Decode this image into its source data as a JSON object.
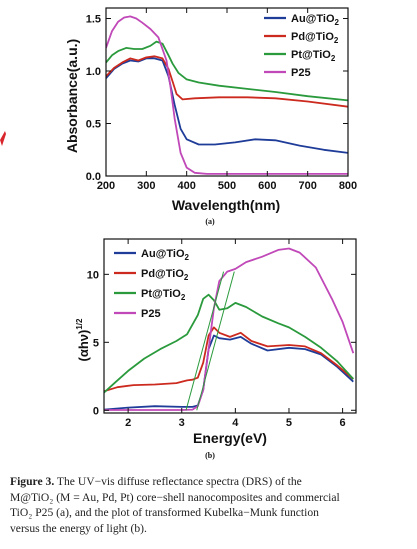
{
  "chart_data": [
    {
      "type": "line",
      "panel_label": "(a)",
      "xlabel": "Wavelength(nm)",
      "ylabel": "Absorbance(a.u.)",
      "xlim": [
        200,
        800
      ],
      "ylim": [
        0.0,
        1.6
      ],
      "xticks": [
        200,
        300,
        400,
        500,
        600,
        700,
        800
      ],
      "yticks": [
        0.0,
        0.5,
        1.0,
        1.5
      ],
      "ytick_labels": [
        "0.0",
        "0.5",
        "1.0",
        "1.5"
      ],
      "grid": false,
      "legend_position": "top-right",
      "series": [
        {
          "name": "Au@TiO2",
          "name_base": "Au@TiO",
          "name_sub": "2",
          "color": "#1f3c99",
          "x": [
            200,
            220,
            240,
            260,
            280,
            300,
            320,
            340,
            355,
            370,
            385,
            400,
            430,
            470,
            520,
            570,
            620,
            680,
            740,
            800
          ],
          "y": [
            0.93,
            1.02,
            1.07,
            1.1,
            1.09,
            1.12,
            1.12,
            1.1,
            0.95,
            0.68,
            0.45,
            0.35,
            0.3,
            0.3,
            0.32,
            0.35,
            0.34,
            0.29,
            0.25,
            0.22
          ]
        },
        {
          "name": "Pd@TiO2",
          "name_base": "Pd@TiO",
          "name_sub": "2",
          "color": "#cc2a1e",
          "x": [
            200,
            220,
            240,
            260,
            280,
            300,
            320,
            340,
            355,
            365,
            375,
            390,
            420,
            480,
            550,
            620,
            700,
            800
          ],
          "y": [
            0.95,
            1.03,
            1.08,
            1.12,
            1.1,
            1.13,
            1.14,
            1.12,
            1.02,
            0.9,
            0.78,
            0.73,
            0.74,
            0.75,
            0.75,
            0.74,
            0.71,
            0.66
          ]
        },
        {
          "name": "Pt@TiO2",
          "name_base": "Pt@TiO",
          "name_sub": "2",
          "color": "#2a9a3c",
          "x": [
            200,
            215,
            230,
            250,
            270,
            290,
            310,
            325,
            340,
            355,
            365,
            380,
            400,
            430,
            480,
            550,
            620,
            700,
            800
          ],
          "y": [
            1.08,
            1.15,
            1.19,
            1.22,
            1.21,
            1.21,
            1.24,
            1.28,
            1.26,
            1.15,
            1.07,
            0.98,
            0.92,
            0.89,
            0.86,
            0.83,
            0.8,
            0.76,
            0.72
          ]
        },
        {
          "name": "P25",
          "name_base": "P25",
          "name_sub": "",
          "color": "#c048b8",
          "x": [
            200,
            215,
            230,
            245,
            260,
            275,
            290,
            310,
            330,
            350,
            360,
            370,
            385,
            400,
            420,
            450,
            500,
            600,
            700,
            800
          ],
          "y": [
            1.22,
            1.38,
            1.47,
            1.51,
            1.52,
            1.5,
            1.46,
            1.4,
            1.32,
            1.1,
            0.85,
            0.55,
            0.22,
            0.08,
            0.03,
            0.02,
            0.02,
            0.02,
            0.02,
            0.02
          ]
        }
      ]
    },
    {
      "type": "line",
      "panel_label": "(b)",
      "xlabel": "Energy(eV)",
      "ylabel_base": "(αhν)",
      "ylabel_sup": "1/2",
      "xlim": [
        1.55,
        6.25
      ],
      "ylim": [
        -0.2,
        12.6
      ],
      "xticks": [
        2,
        3,
        4,
        5,
        6
      ],
      "yticks": [
        0,
        5,
        10
      ],
      "grid": false,
      "legend_position": "top-left",
      "series": [
        {
          "name": "Au@TiO2",
          "name_base": "Au@TiO",
          "name_sub": "2",
          "color": "#1f3c99",
          "x": [
            1.55,
            2.0,
            2.5,
            3.0,
            3.2,
            3.3,
            3.4,
            3.5,
            3.6,
            3.7,
            3.9,
            4.1,
            4.3,
            4.6,
            5.0,
            5.3,
            5.6,
            5.9,
            6.2
          ],
          "y": [
            0.05,
            0.2,
            0.3,
            0.25,
            0.25,
            0.35,
            1.5,
            4.5,
            5.5,
            5.3,
            5.2,
            5.4,
            4.9,
            4.4,
            4.6,
            4.5,
            4.1,
            3.2,
            2.1
          ]
        },
        {
          "name": "Pd@TiO2",
          "name_base": "Pd@TiO",
          "name_sub": "2",
          "color": "#cc2a1e",
          "x": [
            1.55,
            1.8,
            2.1,
            2.5,
            2.9,
            3.1,
            3.2,
            3.3,
            3.4,
            3.5,
            3.6,
            3.7,
            3.9,
            4.1,
            4.3,
            4.6,
            5.0,
            5.3,
            5.6,
            5.9,
            6.2
          ],
          "y": [
            1.4,
            1.7,
            1.85,
            1.9,
            2.0,
            2.2,
            2.25,
            2.4,
            3.5,
            5.5,
            6.1,
            5.7,
            5.4,
            5.7,
            5.1,
            4.7,
            4.8,
            4.7,
            4.2,
            3.3,
            2.3
          ]
        },
        {
          "name": "Pt@TiO2",
          "name_base": "Pt@TiO",
          "name_sub": "2",
          "color": "#2a9a3c",
          "x": [
            1.55,
            1.8,
            2.0,
            2.3,
            2.6,
            2.9,
            3.1,
            3.3,
            3.4,
            3.5,
            3.6,
            3.7,
            3.85,
            4.0,
            4.2,
            4.5,
            4.8,
            5.0,
            5.3,
            5.6,
            5.9,
            6.2
          ],
          "y": [
            1.3,
            2.2,
            2.9,
            3.8,
            4.5,
            5.1,
            5.6,
            7.0,
            8.2,
            8.5,
            8.1,
            7.4,
            7.5,
            7.9,
            7.6,
            6.9,
            6.4,
            6.1,
            5.4,
            4.6,
            3.6,
            2.3
          ]
        },
        {
          "name": "P25",
          "name_base": "P25",
          "name_sub": "",
          "color": "#c048b8",
          "x": [
            1.55,
            3.0,
            3.2,
            3.3,
            3.4,
            3.45,
            3.5,
            3.6,
            3.7,
            3.85,
            4.0,
            4.2,
            4.5,
            4.8,
            5.0,
            5.2,
            5.5,
            5.8,
            6.0,
            6.2
          ],
          "y": [
            0.02,
            0.02,
            0.05,
            0.3,
            1.5,
            3.0,
            4.5,
            7.5,
            9.5,
            10.2,
            10.4,
            10.9,
            11.3,
            11.8,
            11.9,
            11.6,
            10.5,
            8.2,
            6.5,
            4.2
          ]
        }
      ],
      "tangent_lines": [
        {
          "color": "#2a9a3c",
          "x": [
            3.08,
            3.78
          ],
          "y": [
            0,
            10.2
          ]
        },
        {
          "color": "#2a9a3c",
          "x": [
            3.28,
            3.98
          ],
          "y": [
            0,
            10.2
          ]
        }
      ]
    }
  ],
  "left_mark_color": "#d9262c",
  "caption": {
    "label": "Figure 3.",
    "lines": [
      " The UV−vis diffuse reflectance spectra (DRS) of the",
      "M@TiO₂ (M = Au, Pd, Pt) core−shell nanocomposites and commercial",
      "TiO₂ P25 (a), and the plot of transformed Kubelka−Munk function",
      "versus the energy of light (b)."
    ]
  }
}
